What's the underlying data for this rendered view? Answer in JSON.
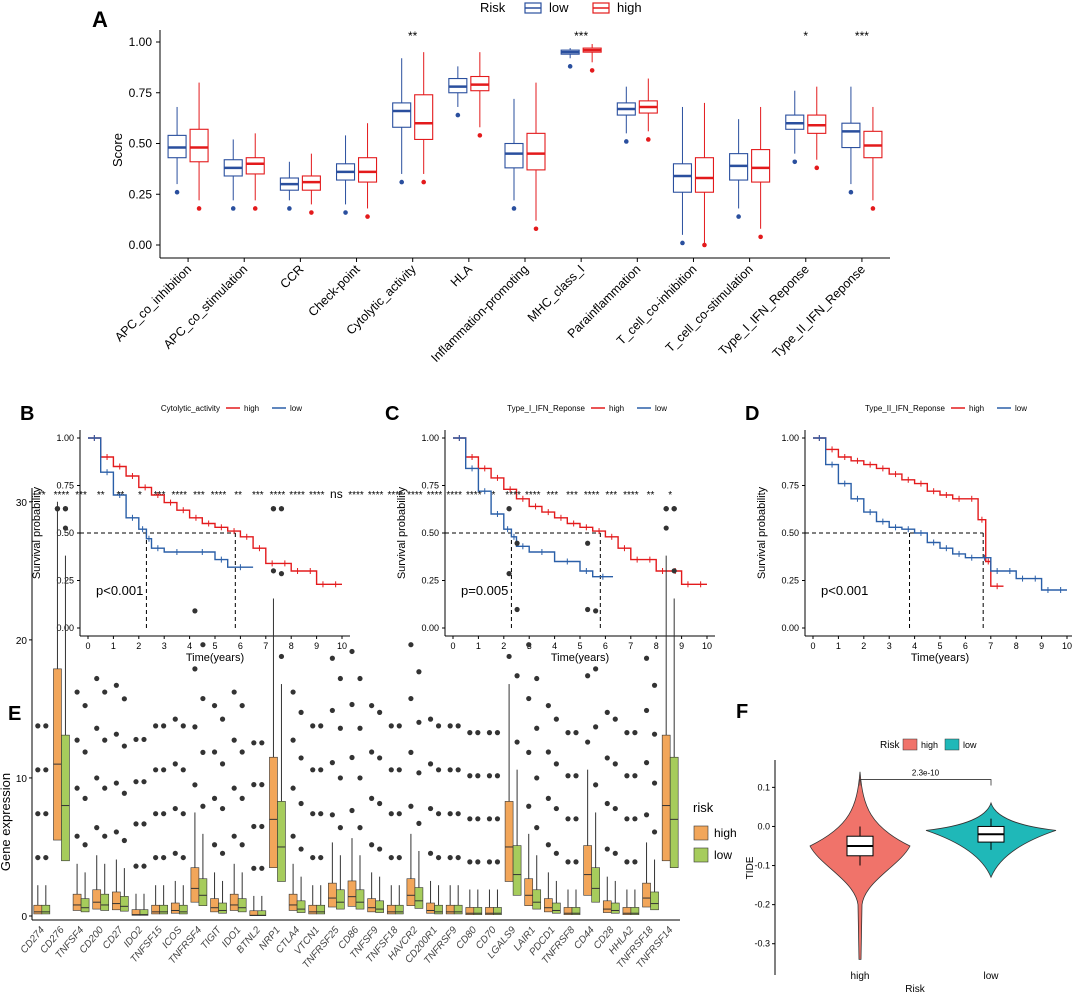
{
  "colors": {
    "low": "#2a4f9e",
    "high": "#e31a1c",
    "tide_high": "#f0736a",
    "tide_low": "#1fb8b8",
    "gene_high": "#f2a65a",
    "gene_low": "#a6cc5c",
    "km_high": "#e31a1c",
    "km_low": "#2a5fa8"
  },
  "chart_data": [
    {
      "panel_label": "A",
      "type": "box",
      "legend": {
        "title": "Risk",
        "entries": [
          "low",
          "high"
        ],
        "placement": "top"
      },
      "ylabel": "Score",
      "ylim": [
        0,
        1.0
      ],
      "yticks": [
        "0.00",
        "0.25",
        "0.50",
        "0.75",
        "1.00"
      ],
      "categories": [
        "APC_co_inhibition",
        "APC_co_stimulation",
        "CCR",
        "Check-point",
        "Cytolytic_activity",
        "HLA",
        "Inflammation-promoting",
        "MHC_class_I",
        "Parainflammation",
        "T_cell_co-inhibition",
        "T_cell_co-stimulation",
        "Type_I_IFN_Reponse",
        "Type_II_IFN_Reponse"
      ],
      "significance": [
        "",
        "",
        "",
        "",
        "**",
        "",
        "",
        "***",
        "",
        "",
        "",
        "*",
        "***"
      ],
      "series": [
        {
          "name": "low",
          "boxes": [
            [
              0.3,
              0.43,
              0.48,
              0.54,
              0.68
            ],
            [
              0.22,
              0.34,
              0.38,
              0.42,
              0.52
            ],
            [
              0.22,
              0.27,
              0.3,
              0.33,
              0.41
            ],
            [
              0.2,
              0.32,
              0.36,
              0.4,
              0.54
            ],
            [
              0.35,
              0.58,
              0.66,
              0.7,
              0.92
            ],
            [
              0.68,
              0.75,
              0.78,
              0.82,
              0.88
            ],
            [
              0.22,
              0.38,
              0.45,
              0.5,
              0.72
            ],
            [
              0.92,
              0.94,
              0.95,
              0.96,
              0.97
            ],
            [
              0.55,
              0.64,
              0.67,
              0.7,
              0.78
            ],
            [
              0.05,
              0.26,
              0.34,
              0.4,
              0.68
            ],
            [
              0.18,
              0.32,
              0.39,
              0.45,
              0.62
            ],
            [
              0.45,
              0.57,
              0.6,
              0.64,
              0.76
            ],
            [
              0.3,
              0.48,
              0.56,
              0.6,
              0.78
            ]
          ]
        },
        {
          "name": "high",
          "boxes": [
            [
              0.22,
              0.41,
              0.48,
              0.57,
              0.8
            ],
            [
              0.22,
              0.35,
              0.4,
              0.43,
              0.55
            ],
            [
              0.2,
              0.27,
              0.31,
              0.34,
              0.45
            ],
            [
              0.18,
              0.31,
              0.36,
              0.43,
              0.6
            ],
            [
              0.35,
              0.52,
              0.6,
              0.74,
              0.95
            ],
            [
              0.58,
              0.76,
              0.79,
              0.83,
              0.95
            ],
            [
              0.12,
              0.37,
              0.45,
              0.55,
              0.8
            ],
            [
              0.9,
              0.95,
              0.96,
              0.97,
              0.99
            ],
            [
              0.56,
              0.65,
              0.68,
              0.71,
              0.82
            ],
            [
              0.0,
              0.26,
              0.33,
              0.43,
              0.7
            ],
            [
              0.08,
              0.31,
              0.38,
              0.47,
              0.68
            ],
            [
              0.42,
              0.55,
              0.59,
              0.64,
              0.78
            ],
            [
              0.22,
              0.43,
              0.49,
              0.56,
              0.68
            ]
          ]
        }
      ]
    },
    {
      "panel_label": "B",
      "type": "line",
      "legend_title": "Cytolytic_activity",
      "legend_entries": [
        "high",
        "low"
      ],
      "xlabel": "Time(years)",
      "ylabel": "Survival probability",
      "xlim": [
        0,
        10
      ],
      "ylim": [
        0,
        1
      ],
      "pvalue": "p<0.001",
      "median_high": 5.8,
      "median_low": 2.3,
      "series": [
        {
          "name": "high",
          "x": [
            0,
            0.5,
            1,
            1.5,
            2,
            2.5,
            3,
            3.5,
            4,
            4.5,
            5,
            5.5,
            6,
            6.5,
            7,
            7.5,
            8,
            8.5,
            9,
            9.5,
            10
          ],
          "y": [
            1,
            0.9,
            0.85,
            0.8,
            0.74,
            0.7,
            0.66,
            0.62,
            0.58,
            0.55,
            0.53,
            0.51,
            0.48,
            0.42,
            0.34,
            0.34,
            0.3,
            0.3,
            0.23,
            0.23,
            0.23
          ]
        },
        {
          "name": "low",
          "x": [
            0,
            0.5,
            1,
            1.5,
            2,
            2.3,
            2.5,
            3,
            4,
            5,
            5.5,
            6.5
          ],
          "y": [
            1,
            0.82,
            0.7,
            0.58,
            0.52,
            0.47,
            0.42,
            0.4,
            0.4,
            0.36,
            0.32,
            0.32
          ]
        }
      ]
    },
    {
      "panel_label": "C",
      "type": "line",
      "legend_title": "Type_I_IFN_Reponse",
      "legend_entries": [
        "high",
        "low"
      ],
      "xlabel": "Time(years)",
      "ylabel": "Survival probability",
      "xlim": [
        0,
        10
      ],
      "ylim": [
        0,
        1
      ],
      "pvalue": "p=0.005",
      "median_high": 5.8,
      "median_low": 2.3,
      "series": [
        {
          "name": "high",
          "x": [
            0,
            0.5,
            1,
            1.5,
            2,
            2.5,
            3,
            3.5,
            4,
            4.5,
            5,
            5.5,
            6,
            6.5,
            7,
            7.5,
            8,
            8.5,
            9,
            9.5,
            10
          ],
          "y": [
            1,
            0.9,
            0.84,
            0.79,
            0.73,
            0.68,
            0.64,
            0.61,
            0.58,
            0.55,
            0.53,
            0.51,
            0.48,
            0.42,
            0.36,
            0.36,
            0.3,
            0.3,
            0.23,
            0.23,
            0.23
          ]
        },
        {
          "name": "low",
          "x": [
            0,
            0.5,
            1,
            1.5,
            2,
            2.3,
            2.5,
            3,
            4,
            5,
            5.5,
            6.3
          ],
          "y": [
            1,
            0.84,
            0.72,
            0.6,
            0.52,
            0.48,
            0.43,
            0.4,
            0.35,
            0.3,
            0.27,
            0.27
          ]
        }
      ]
    },
    {
      "panel_label": "D",
      "type": "line",
      "legend_title": "Type_II_IFN_Reponse",
      "legend_entries": [
        "high",
        "low"
      ],
      "xlabel": "Time(years)",
      "ylabel": "Survival probability",
      "xlim": [
        0,
        10
      ],
      "ylim": [
        0,
        1
      ],
      "pvalue": "p<0.001",
      "median_high": 6.7,
      "median_low": 3.8,
      "series": [
        {
          "name": "high",
          "x": [
            0,
            0.5,
            1,
            1.5,
            2,
            2.5,
            3,
            3.5,
            4,
            4.5,
            5,
            5.5,
            6,
            6.5,
            6.8,
            7,
            7.5
          ],
          "y": [
            1,
            0.94,
            0.9,
            0.88,
            0.86,
            0.84,
            0.81,
            0.78,
            0.76,
            0.72,
            0.7,
            0.68,
            0.68,
            0.57,
            0.35,
            0.22,
            0.22
          ]
        },
        {
          "name": "low",
          "x": [
            0,
            0.5,
            1,
            1.5,
            2,
            2.5,
            3,
            3.5,
            4,
            4.5,
            5,
            5.5,
            6,
            6.5,
            7,
            7.5,
            8,
            8.5,
            9,
            9.5,
            10
          ],
          "y": [
            1,
            0.86,
            0.76,
            0.68,
            0.61,
            0.56,
            0.53,
            0.52,
            0.5,
            0.45,
            0.42,
            0.39,
            0.37,
            0.37,
            0.3,
            0.3,
            0.26,
            0.26,
            0.2,
            0.2,
            0.2
          ]
        }
      ]
    },
    {
      "panel_label": "E",
      "type": "box",
      "legend": {
        "title": "risk",
        "entries": [
          "high",
          "low"
        ],
        "placement": "right"
      },
      "ylabel": "Gene expression",
      "ylim": [
        0,
        31
      ],
      "yticks": [
        "0",
        "10",
        "20",
        "30"
      ],
      "categories": [
        "CD274",
        "CD276",
        "TNFSF4",
        "CD200",
        "CD27",
        "IDO2",
        "TNFSF15",
        "ICOS",
        "TNFRSF4",
        "TIGIT",
        "IDO1",
        "BTNL2",
        "NRP1",
        "CTLA4",
        "VTCN1",
        "TNFRSF25",
        "CD86",
        "TNFSF9",
        "TNFSF18",
        "HAVCR2",
        "CD200R1",
        "TNFRSF9",
        "CD80",
        "CD70",
        "LGALS9",
        "LAIR1",
        "PDCD1",
        "TNFRSF8",
        "CD44",
        "CD28",
        "HHLA2",
        "TNFRSF18",
        "TNFRSF14"
      ],
      "significance": [
        "**",
        "****",
        "***",
        "**",
        "**",
        "*",
        "***",
        "****",
        "***",
        "****",
        "**",
        "***",
        "****",
        "****",
        "****",
        "ns",
        "****",
        "****",
        "****",
        "****",
        "****",
        "****",
        "****",
        "*",
        "****",
        "****",
        "***",
        "***",
        "****",
        "***",
        "****",
        "**",
        "*"
      ],
      "series": [
        {
          "name": "high",
          "medians": [
            0.3,
            11,
            0.8,
            1.0,
            0.9,
            0.1,
            0.3,
            0.4,
            2.0,
            0.6,
            0.8,
            0.05,
            7,
            0.8,
            0.3,
            1.3,
            1.4,
            0.6,
            0.3,
            1.5,
            0.4,
            0.3,
            0.2,
            0.2,
            5,
            1.5,
            0.6,
            0.2,
            3,
            0.5,
            0.2,
            1.3,
            8
          ]
        },
        {
          "name": "low",
          "medians": [
            0.3,
            8,
            0.6,
            0.8,
            0.7,
            0.1,
            0.3,
            0.3,
            1.5,
            0.4,
            0.6,
            0.05,
            5,
            0.5,
            0.3,
            1.0,
            1.0,
            0.5,
            0.3,
            1.1,
            0.3,
            0.3,
            0.2,
            0.2,
            3,
            1.0,
            0.4,
            0.2,
            2,
            0.4,
            0.2,
            0.9,
            7
          ]
        }
      ]
    },
    {
      "panel_label": "F",
      "type": "violin",
      "legend": {
        "title": "Risk",
        "entries": [
          "high",
          "low"
        ],
        "placement": "top"
      },
      "xlabel": "Risk",
      "ylabel": "TIDE",
      "categories": [
        "high",
        "low"
      ],
      "ylim": [
        -0.38,
        0.17
      ],
      "yticks": [
        "0.1",
        "0.0",
        "-0.1",
        "-0.2",
        "-0.3"
      ],
      "pvalue": "2.3e-10",
      "boxes": [
        [
          -0.1,
          -0.075,
          -0.05,
          -0.025,
          0.0
        ],
        [
          -0.06,
          -0.04,
          -0.02,
          0.0,
          0.02
        ]
      ]
    }
  ]
}
